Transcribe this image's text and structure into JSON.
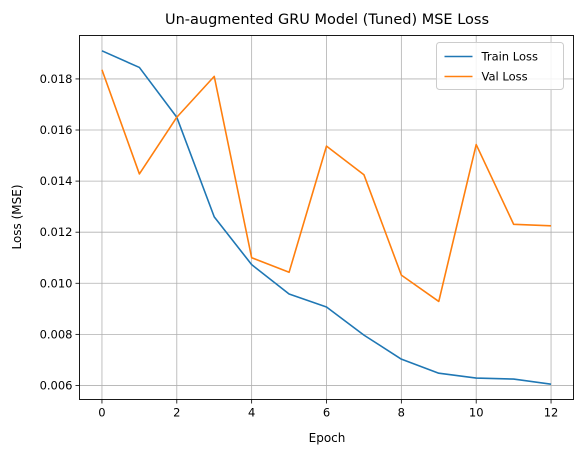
{
  "chart_data": {
    "type": "line",
    "title": "Un-augmented GRU Model (Tuned) MSE Loss",
    "xlabel": "Epoch",
    "ylabel": "Loss (MSE)",
    "xlim": [
      -0.6,
      12.6
    ],
    "ylim": [
      0.00545,
      0.0197
    ],
    "x_ticks": [
      0,
      2,
      4,
      6,
      8,
      10,
      12
    ],
    "y_ticks": [
      0.006,
      0.008,
      0.01,
      0.012,
      0.014,
      0.016,
      0.018
    ],
    "y_tick_labels": [
      "0.006",
      "0.008",
      "0.010",
      "0.012",
      "0.014",
      "0.016",
      "0.018"
    ],
    "grid": true,
    "legend_position": "top-right",
    "x": [
      0,
      1,
      2,
      3,
      4,
      5,
      6,
      7,
      8,
      9,
      10,
      11,
      12
    ],
    "series": [
      {
        "name": "Train Loss",
        "color": "#1f77b4",
        "values": [
          0.0191,
          0.01845,
          0.0165,
          0.0126,
          0.01073,
          0.00958,
          0.00907,
          0.00797,
          0.00703,
          0.00648,
          0.00629,
          0.00625,
          0.00605
        ]
      },
      {
        "name": "Val Loss",
        "color": "#ff7f0e",
        "values": [
          0.01836,
          0.01428,
          0.0165,
          0.0181,
          0.011,
          0.01043,
          0.01537,
          0.01425,
          0.01032,
          0.00929,
          0.01543,
          0.01231,
          0.01225
        ]
      }
    ]
  }
}
